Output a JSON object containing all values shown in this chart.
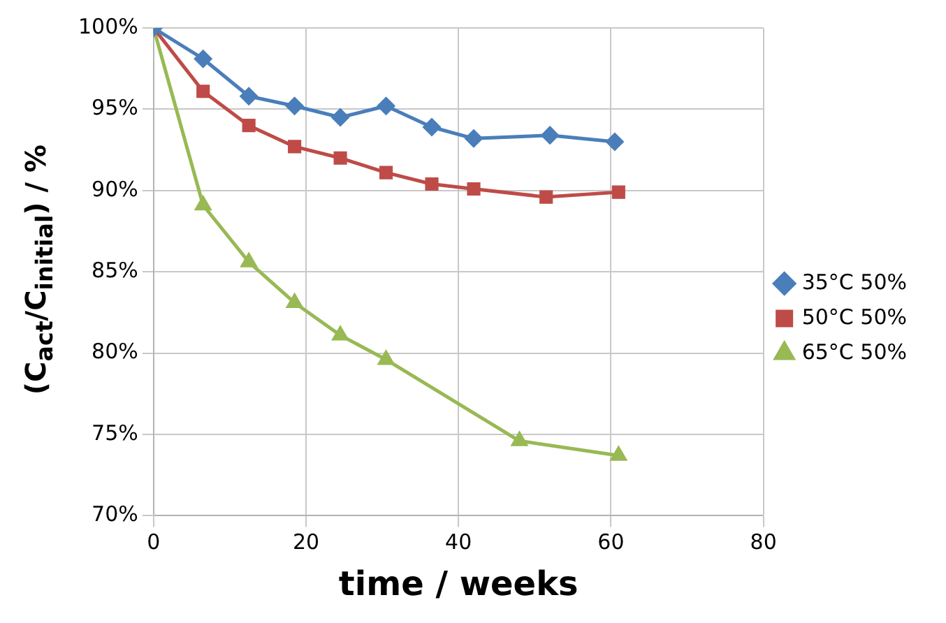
{
  "chart_data": {
    "type": "line",
    "xlabel": "time / weeks",
    "ylabel": "(C$_{act}$/C$_{initial}$) / %",
    "series": [
      {
        "name": "35°C 50%",
        "color": "#4a7ebb",
        "marker": "diamond",
        "x": [
          0,
          6.5,
          12.5,
          18.5,
          24.5,
          30.5,
          36.5,
          42,
          52,
          60.5
        ],
        "values": [
          100,
          98.1,
          95.8,
          95.2,
          94.5,
          95.2,
          93.9,
          93.2,
          93.4,
          93.0
        ]
      },
      {
        "name": "50°C 50%",
        "color": "#be4b48",
        "marker": "square",
        "x": [
          0,
          6.5,
          12.5,
          18.5,
          24.5,
          30.5,
          36.5,
          42,
          51.5,
          61
        ],
        "values": [
          100,
          96.1,
          94.0,
          92.7,
          92.0,
          91.1,
          90.4,
          90.1,
          89.6,
          89.9
        ]
      },
      {
        "name": "65°C 50%",
        "color": "#98b954",
        "marker": "triangle",
        "x": [
          0,
          6.5,
          12.5,
          18.5,
          24.5,
          30.5,
          48,
          61
        ],
        "values": [
          100,
          89.1,
          85.6,
          83.1,
          81.1,
          79.6,
          74.6,
          73.7
        ]
      }
    ],
    "xlim": [
      0,
      80
    ],
    "xticks": [
      0,
      20,
      40,
      60,
      80
    ],
    "ylim": [
      70,
      100
    ],
    "yticks": [
      {
        "value": 70,
        "label": "70%"
      },
      {
        "value": 75,
        "label": "75%"
      },
      {
        "value": 80,
        "label": "80%"
      },
      {
        "value": 85,
        "label": "85%"
      },
      {
        "value": 90,
        "label": "90%"
      },
      {
        "value": 95,
        "label": "95%"
      },
      {
        "value": 100,
        "label": "100%"
      }
    ],
    "grid": true,
    "legend": "right",
    "line_style": "solid"
  }
}
